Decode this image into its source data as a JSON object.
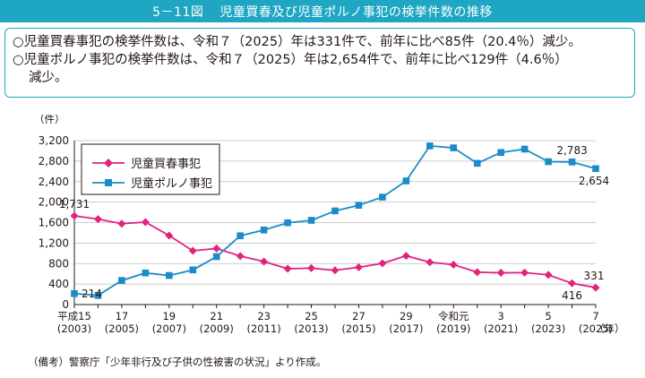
{
  "figure": {
    "number": "5－11図",
    "title": "児童買春及び児童ポルノ事犯の検挙件数の推移"
  },
  "summary": {
    "line1": "○児童買春事犯の検挙件数は、令和７（2025）年は331件で、前年に比べ85件（20.4％）減少。",
    "line2": "○児童ポルノ事犯の検挙件数は、令和７（2025）年は2,654件で、前年に比べ129件（4.6％）",
    "line3": "減少。"
  },
  "source": "（備考）警察庁「少年非行及び子供の性被害の状況」より作成。",
  "colors": {
    "header": "#1ea6c3",
    "series_1": "#e0237f",
    "series_2": "#1a8cc8",
    "grid": "#bbbbbb"
  },
  "chart_data": {
    "type": "line",
    "ylabel": "（件）",
    "xunit": "（年）",
    "ylim": [
      0,
      3200
    ],
    "yticks": [
      0,
      400,
      800,
      1200,
      1600,
      2000,
      2400,
      2800,
      3200
    ],
    "ytick_labels": [
      "0",
      "400",
      "800",
      "1,200",
      "1,600",
      "2,000",
      "2,400",
      "2,800",
      "3,200"
    ],
    "x": [
      2003,
      2004,
      2005,
      2006,
      2007,
      2008,
      2009,
      2010,
      2011,
      2012,
      2013,
      2014,
      2015,
      2016,
      2017,
      2018,
      2019,
      2020,
      2021,
      2022,
      2023,
      2024,
      2025
    ],
    "xticks": [
      {
        "x": 2003,
        "top": "平成15",
        "bottom": "(2003)"
      },
      {
        "x": 2005,
        "top": "17",
        "bottom": "(2005)"
      },
      {
        "x": 2007,
        "top": "19",
        "bottom": "(2007)"
      },
      {
        "x": 2009,
        "top": "21",
        "bottom": "(2009)"
      },
      {
        "x": 2011,
        "top": "23",
        "bottom": "(2011)"
      },
      {
        "x": 2013,
        "top": "25",
        "bottom": "(2013)"
      },
      {
        "x": 2015,
        "top": "27",
        "bottom": "(2015)"
      },
      {
        "x": 2017,
        "top": "29",
        "bottom": "(2017)"
      },
      {
        "x": 2019,
        "top": "令和元",
        "bottom": "(2019)"
      },
      {
        "x": 2021,
        "top": "3",
        "bottom": "(2021)"
      },
      {
        "x": 2023,
        "top": "5",
        "bottom": "(2023)"
      },
      {
        "x": 2025,
        "top": "7",
        "bottom": "(2025)"
      }
    ],
    "series": [
      {
        "name": "児童買春事犯",
        "marker": "diamond",
        "values": [
          1731,
          1668,
          1579,
          1609,
          1347,
          1049,
          1094,
          947,
          839,
          700,
          710,
          668,
          728,
          805,
          951,
          826,
          778,
          631,
          620,
          623,
          579,
          416,
          331
        ]
      },
      {
        "name": "児童ポルノ事犯",
        "marker": "square",
        "values": [
          214,
          178,
          470,
          617,
          567,
          676,
          935,
          1342,
          1455,
          1596,
          1644,
          1828,
          1938,
          2097,
          2413,
          3097,
          3059,
          2757,
          2969,
          3035,
          2789,
          2783,
          2654
        ]
      }
    ],
    "data_labels": [
      {
        "series": 0,
        "x": 2003,
        "text": "1,731",
        "pos": "above"
      },
      {
        "series": 1,
        "x": 2003,
        "text": "214",
        "pos": "right"
      },
      {
        "series": 1,
        "x": 2024,
        "text": "2,783",
        "pos": "above"
      },
      {
        "series": 1,
        "x": 2025,
        "text": "2,654",
        "pos": "below"
      },
      {
        "series": 0,
        "x": 2024,
        "text": "416",
        "pos": "below"
      },
      {
        "series": 0,
        "x": 2025,
        "text": "331",
        "pos": "above"
      }
    ],
    "grid": true,
    "legend": "top-left"
  }
}
